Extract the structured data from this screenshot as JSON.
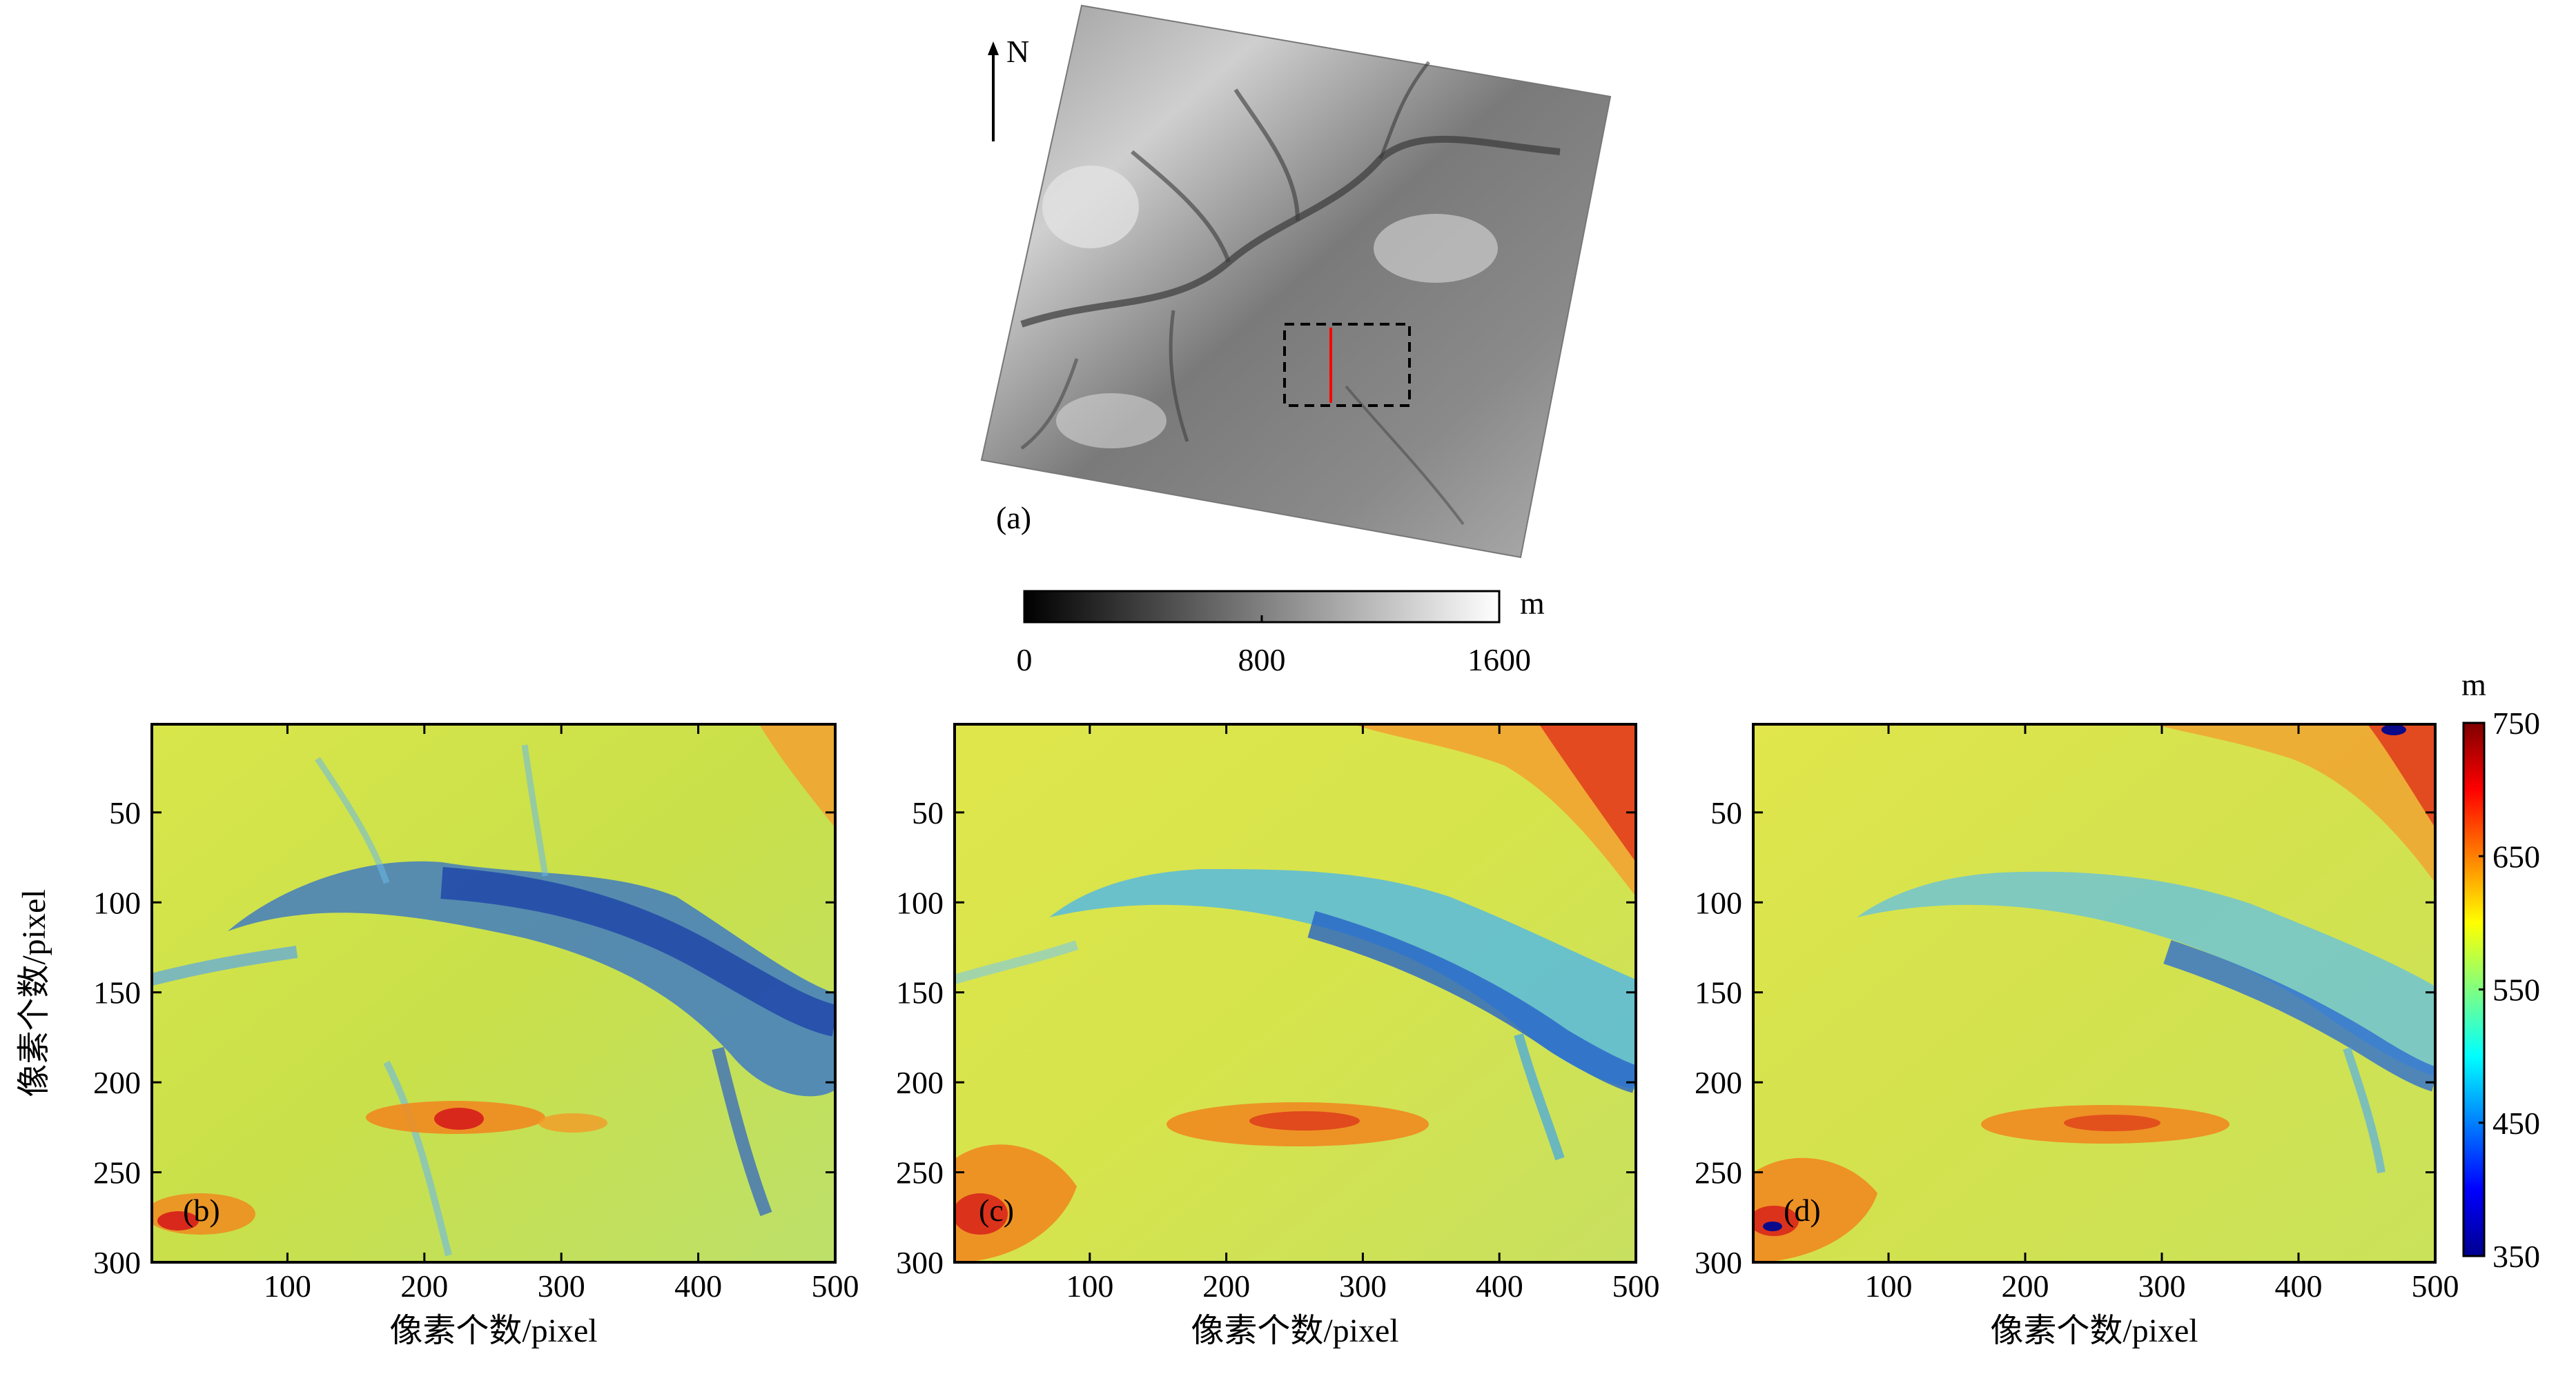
{
  "panel_a": {
    "label": "(a)",
    "north_label": "N",
    "colorbar": {
      "unit": "m",
      "min": 0,
      "max": 1600,
      "ticks": [
        0,
        800,
        1600
      ]
    }
  },
  "panels": [
    {
      "id": "b",
      "label": "(b)",
      "xlabel": "像素个数/pixel",
      "ylabel": "像素个数/pixel",
      "xticks": [
        100,
        200,
        300,
        400,
        500
      ],
      "yticks": [
        50,
        100,
        150,
        200,
        250,
        300
      ],
      "xlim": [
        1,
        500
      ],
      "ylim": [
        1,
        300
      ]
    },
    {
      "id": "c",
      "label": "(c)",
      "xlabel": "像素个数/pixel",
      "ylabel": "",
      "xticks": [
        100,
        200,
        300,
        400,
        500
      ],
      "yticks": [
        50,
        100,
        150,
        200,
        250,
        300
      ],
      "xlim": [
        1,
        500
      ],
      "ylim": [
        1,
        300
      ]
    },
    {
      "id": "d",
      "label": "(d)",
      "xlabel": "像素个数/pixel",
      "ylabel": "",
      "xticks": [
        100,
        200,
        300,
        400,
        500
      ],
      "yticks": [
        50,
        100,
        150,
        200,
        250,
        300
      ],
      "xlim": [
        1,
        500
      ],
      "ylim": [
        1,
        300
      ]
    }
  ],
  "colorbar_jet": {
    "unit": "m",
    "min": 350,
    "max": 750,
    "ticks": [
      350,
      450,
      550,
      650,
      750
    ]
  },
  "colors": {
    "red_profile_line": "#ff0000",
    "jet_low": "#00008f",
    "jet_mid": "#80ff80",
    "jet_high": "#800000"
  }
}
